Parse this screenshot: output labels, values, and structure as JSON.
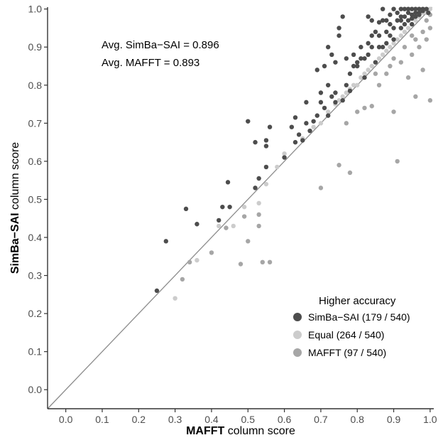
{
  "chart_data": {
    "type": "scatter",
    "xlabel_bold": "MAFFT",
    "xlabel_rest": " column score",
    "ylabel_bold": "SimBa−SAI",
    "ylabel_rest": " column score",
    "xlim": [
      -0.05,
      1.01
    ],
    "ylim": [
      -0.05,
      1.005
    ],
    "x_ticks": [
      0.0,
      0.1,
      0.2,
      0.3,
      0.4,
      0.5,
      0.6,
      0.7,
      0.8,
      0.9,
      1.0
    ],
    "y_ticks": [
      0.0,
      0.1,
      0.2,
      0.3,
      0.4,
      0.5,
      0.6,
      0.7,
      0.8,
      0.9,
      1.0
    ],
    "x_tick_labels": [
      "0.0",
      "0.1",
      "0.2",
      "0.3",
      "0.4",
      "0.5",
      "0.6",
      "0.7",
      "0.8",
      "0.9",
      "1.0"
    ],
    "y_tick_labels": [
      "0.0",
      "0.1",
      "0.2",
      "0.3",
      "0.4",
      "0.5",
      "0.6",
      "0.7",
      "0.8",
      "0.9",
      "1.0"
    ],
    "grid": false,
    "reference_line": "y = x",
    "annotations": [
      {
        "label": "Avg. SimBa−SAI = ",
        "value": "0.896"
      },
      {
        "label": "Avg. MAFFT = ",
        "value": "0.893"
      }
    ],
    "legend": {
      "title": "Higher accuracy",
      "placement": "bottom-right"
    },
    "series": [
      {
        "name": "SimBa−SAI",
        "count_label": "(179 / 540)",
        "color": "#4d4d4d",
        "points": [
          [
            0.25,
            0.26
          ],
          [
            0.275,
            0.39
          ],
          [
            0.33,
            0.475
          ],
          [
            0.36,
            0.435
          ],
          [
            0.42,
            0.445
          ],
          [
            0.43,
            0.48
          ],
          [
            0.45,
            0.48
          ],
          [
            0.445,
            0.545
          ],
          [
            0.5,
            0.705
          ],
          [
            0.52,
            0.65
          ],
          [
            0.52,
            0.53
          ],
          [
            0.53,
            0.555
          ],
          [
            0.55,
            0.585
          ],
          [
            0.55,
            0.64
          ],
          [
            0.55,
            0.655
          ],
          [
            0.56,
            0.69
          ],
          [
            0.6,
            0.61
          ],
          [
            0.62,
            0.69
          ],
          [
            0.63,
            0.715
          ],
          [
            0.63,
            0.65
          ],
          [
            0.64,
            0.67
          ],
          [
            0.65,
            0.655
          ],
          [
            0.66,
            0.7
          ],
          [
            0.67,
            0.68
          ],
          [
            0.68,
            0.705
          ],
          [
            0.69,
            0.72
          ],
          [
            0.69,
            0.84
          ],
          [
            0.7,
            0.755
          ],
          [
            0.7,
            0.78
          ],
          [
            0.71,
            0.74
          ],
          [
            0.72,
            0.72
          ],
          [
            0.72,
            0.9
          ],
          [
            0.73,
            0.77
          ],
          [
            0.74,
            0.755
          ],
          [
            0.74,
            0.78
          ],
          [
            0.75,
            0.93
          ],
          [
            0.75,
            0.95
          ],
          [
            0.76,
            0.98
          ],
          [
            0.76,
            0.76
          ],
          [
            0.77,
            0.8
          ],
          [
            0.78,
            0.785
          ],
          [
            0.78,
            0.83
          ],
          [
            0.79,
            0.85
          ],
          [
            0.8,
            0.85
          ],
          [
            0.8,
            0.86
          ],
          [
            0.81,
            0.87
          ],
          [
            0.82,
            0.82
          ],
          [
            0.82,
            0.87
          ],
          [
            0.83,
            0.88
          ],
          [
            0.83,
            0.98
          ],
          [
            0.84,
            0.9
          ],
          [
            0.84,
            0.93
          ],
          [
            0.85,
            0.94
          ],
          [
            0.85,
            0.86
          ],
          [
            0.86,
            0.9
          ],
          [
            0.86,
            0.965
          ],
          [
            0.87,
            0.9
          ],
          [
            0.87,
            0.97
          ],
          [
            0.88,
            0.91
          ],
          [
            0.88,
            0.94
          ],
          [
            0.89,
            0.93
          ],
          [
            0.89,
            0.985
          ],
          [
            0.9,
            0.92
          ],
          [
            0.9,
            0.95
          ],
          [
            0.91,
            0.97
          ],
          [
            0.91,
            0.99
          ],
          [
            0.92,
            0.95
          ],
          [
            0.92,
            0.98
          ],
          [
            0.93,
            1.0
          ],
          [
            0.93,
            0.96
          ],
          [
            0.94,
            0.97
          ],
          [
            0.94,
            0.99
          ],
          [
            0.95,
            0.96
          ],
          [
            0.95,
            1.0
          ],
          [
            0.96,
            0.98
          ],
          [
            0.96,
            0.99
          ],
          [
            0.97,
            1.0
          ],
          [
            0.97,
            0.985
          ],
          [
            0.98,
            0.995
          ],
          [
            0.98,
            1.0
          ],
          [
            0.99,
            1.0
          ],
          [
            0.995,
            0.99
          ],
          [
            0.66,
            0.755
          ],
          [
            0.71,
            0.85
          ],
          [
            0.72,
            0.8
          ],
          [
            0.73,
            0.88
          ],
          [
            0.77,
            0.87
          ],
          [
            0.81,
            0.9
          ],
          [
            0.84,
            0.97
          ],
          [
            0.87,
            1.0
          ],
          [
            0.9,
            1.0
          ],
          [
            0.92,
            1.0
          ],
          [
            0.93,
            0.98
          ],
          [
            0.95,
            0.985
          ],
          [
            0.96,
            1.0
          ],
          [
            0.74,
            0.86
          ],
          [
            0.79,
            0.88
          ],
          [
            0.83,
            0.91
          ],
          [
            0.86,
            0.93
          ],
          [
            0.88,
            0.97
          ],
          [
            0.89,
            0.96
          ],
          [
            0.92,
            0.97
          ],
          [
            0.94,
            1.0
          ],
          [
            0.95,
            0.975
          ],
          [
            0.97,
            0.99
          ]
        ]
      },
      {
        "name": "Equal",
        "count_label": "(264 / 540)",
        "color": "#cccccc",
        "points": [
          [
            0.3,
            0.24
          ],
          [
            0.36,
            0.34
          ],
          [
            0.42,
            0.43
          ],
          [
            0.46,
            0.43
          ],
          [
            0.49,
            0.48
          ],
          [
            0.53,
            0.49
          ],
          [
            0.55,
            0.54
          ],
          [
            0.58,
            0.585
          ],
          [
            0.6,
            0.62
          ],
          [
            0.65,
            0.66
          ],
          [
            0.68,
            0.69
          ],
          [
            0.7,
            0.7
          ],
          [
            0.72,
            0.73
          ],
          [
            0.74,
            0.75
          ],
          [
            0.76,
            0.77
          ],
          [
            0.78,
            0.79
          ],
          [
            0.8,
            0.8
          ],
          [
            0.82,
            0.83
          ],
          [
            0.84,
            0.85
          ],
          [
            0.86,
            0.87
          ],
          [
            0.88,
            0.89
          ],
          [
            0.9,
            0.91
          ],
          [
            0.92,
            0.93
          ],
          [
            0.94,
            0.95
          ],
          [
            0.96,
            0.97
          ],
          [
            0.98,
            0.99
          ],
          [
            1.0,
            1.0
          ],
          [
            0.99,
            0.99
          ],
          [
            0.97,
            0.98
          ],
          [
            0.95,
            0.96
          ],
          [
            0.93,
            0.94
          ],
          [
            0.91,
            0.92
          ],
          [
            0.89,
            0.9
          ],
          [
            0.87,
            0.88
          ],
          [
            0.85,
            0.86
          ],
          [
            0.83,
            0.84
          ],
          [
            0.81,
            0.82
          ],
          [
            0.79,
            0.8
          ],
          [
            0.77,
            0.78
          ],
          [
            0.75,
            0.76
          ]
        ]
      },
      {
        "name": "MAFFT",
        "count_label": "(97 / 540)",
        "color": "#a6a6a6",
        "points": [
          [
            0.32,
            0.29
          ],
          [
            0.34,
            0.335
          ],
          [
            0.4,
            0.36
          ],
          [
            0.44,
            0.425
          ],
          [
            0.48,
            0.33
          ],
          [
            0.49,
            0.455
          ],
          [
            0.5,
            0.39
          ],
          [
            0.53,
            0.43
          ],
          [
            0.53,
            0.46
          ],
          [
            0.54,
            0.335
          ],
          [
            0.56,
            0.335
          ],
          [
            0.7,
            0.53
          ],
          [
            0.75,
            0.59
          ],
          [
            0.78,
            0.57
          ],
          [
            0.77,
            0.7
          ],
          [
            0.8,
            0.73
          ],
          [
            0.82,
            0.74
          ],
          [
            0.84,
            0.745
          ],
          [
            0.9,
            0.73
          ],
          [
            0.91,
            0.6
          ],
          [
            0.94,
            0.82
          ],
          [
            0.96,
            0.77
          ],
          [
            0.98,
            0.84
          ],
          [
            1.0,
            0.76
          ],
          [
            0.86,
            0.8
          ],
          [
            0.88,
            0.83
          ],
          [
            0.92,
            0.86
          ],
          [
            0.95,
            0.88
          ],
          [
            0.97,
            0.9
          ],
          [
            0.99,
            0.92
          ],
          [
            1.0,
            0.95
          ],
          [
            0.9,
            0.87
          ],
          [
            0.85,
            0.83
          ],
          [
            0.89,
            0.85
          ],
          [
            0.93,
            0.9
          ],
          [
            0.96,
            0.92
          ],
          [
            0.98,
            0.94
          ],
          [
            0.99,
            0.97
          ],
          [
            1.0,
            0.985
          ],
          [
            0.95,
            0.93
          ]
        ]
      }
    ]
  }
}
